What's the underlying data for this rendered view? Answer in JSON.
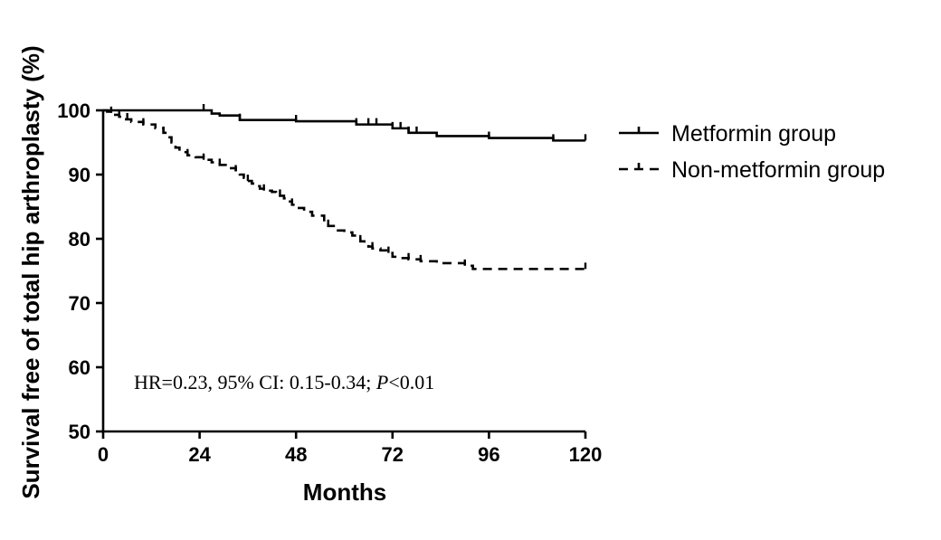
{
  "chart_data": {
    "type": "line",
    "subtype": "kaplan-meier",
    "xlabel": "Months",
    "ylabel": "Survival free of total hip arthroplasty (%)",
    "xlim": [
      0,
      120
    ],
    "ylim": [
      50,
      100
    ],
    "xticks": [
      "0",
      "24",
      "48",
      "72",
      "96",
      "120"
    ],
    "yticks": [
      "50",
      "60",
      "70",
      "80",
      "90",
      "100"
    ],
    "grid": false,
    "legend_position": "top-right",
    "annotation": {
      "prefix": "HR=0.23, 95% CI: 0.15-0.34; ",
      "p_symbol": "P",
      "suffix": "<0.01"
    },
    "series": [
      {
        "name": "Metformin group",
        "style": "solid",
        "color": "#000000",
        "x": [
          0,
          25,
          27,
          29,
          34,
          48,
          63,
          72,
          76,
          83,
          96,
          112,
          120
        ],
        "y": [
          100,
          100,
          99.5,
          99.2,
          98.5,
          98.3,
          97.8,
          97.2,
          96.5,
          96.0,
          95.7,
          95.3,
          95.3
        ],
        "censored_x": [
          25,
          34,
          48,
          63,
          66,
          68,
          72,
          74,
          76,
          78,
          96,
          112,
          120
        ]
      },
      {
        "name": "Non-metformin group",
        "style": "dashed",
        "color": "#000000",
        "x": [
          0,
          1,
          2,
          3,
          4,
          5,
          7,
          10,
          13,
          15,
          16,
          17,
          18,
          19,
          21,
          23,
          25,
          27,
          29,
          31,
          33,
          34,
          35,
          36,
          37,
          38,
          39,
          40,
          42,
          43,
          44,
          45,
          46,
          47,
          48,
          50,
          52,
          55,
          56,
          58,
          60,
          62,
          63,
          64,
          65,
          66,
          67,
          69,
          71,
          72,
          74,
          76,
          79,
          83,
          90,
          92,
          120
        ],
        "y": [
          100,
          99.8,
          99.6,
          99.3,
          99.0,
          98.6,
          98.2,
          97.8,
          97.2,
          96.5,
          95.8,
          95.0,
          94.2,
          93.5,
          93.0,
          92.7,
          92.3,
          91.9,
          91.5,
          91.0,
          90.5,
          90.0,
          89.5,
          89.0,
          88.6,
          88.2,
          87.8,
          87.5,
          87.3,
          87.0,
          86.7,
          86.3,
          85.8,
          85.3,
          84.8,
          84.2,
          83.6,
          82.5,
          82.0,
          81.3,
          81.0,
          80.5,
          80.0,
          79.6,
          79.2,
          78.8,
          78.5,
          78.2,
          77.8,
          77.2,
          77.0,
          76.8,
          76.5,
          76.2,
          75.8,
          75.3,
          75.3
        ],
        "censored_x": [
          2,
          4,
          6,
          10,
          15,
          21,
          25,
          29,
          33,
          36,
          40,
          44,
          47,
          56,
          64,
          67,
          71,
          76,
          79,
          90,
          120
        ]
      }
    ]
  }
}
